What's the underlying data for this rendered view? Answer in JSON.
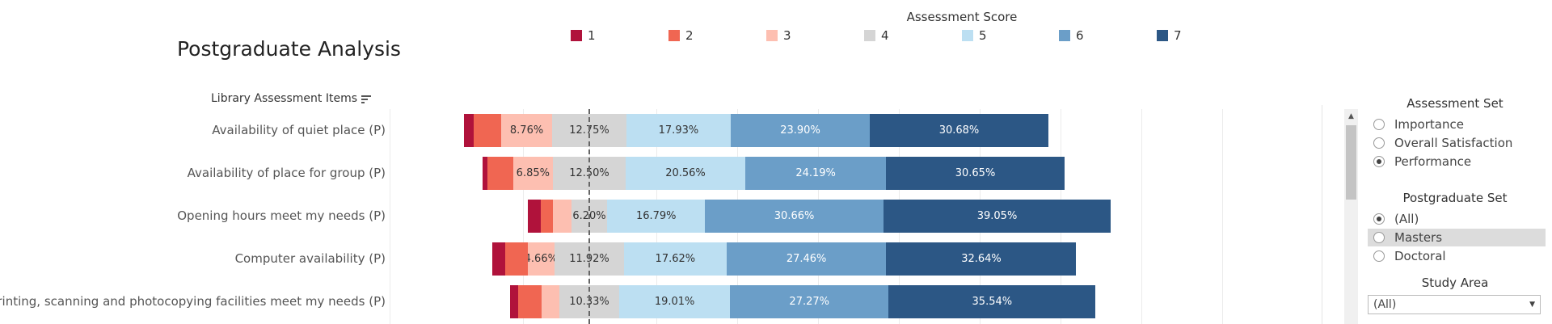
{
  "title": "Postgraduate Analysis",
  "legend": {
    "title": "Assessment Score",
    "items": [
      {
        "label": "1",
        "color": "#b0123b"
      },
      {
        "label": "2",
        "color": "#f06652"
      },
      {
        "label": "3",
        "color": "#fdbfb1"
      },
      {
        "label": "4",
        "color": "#d5d5d5"
      },
      {
        "label": "5",
        "color": "#bcdff2"
      },
      {
        "label": "6",
        "color": "#6b9ec8"
      },
      {
        "label": "7",
        "color": "#2c5785"
      }
    ]
  },
  "row_header": {
    "label": "Library Assessment Items",
    "icon": "sort-descending-icon"
  },
  "chart_data": {
    "type": "bar",
    "orientation": "horizontal",
    "stacked": "diverging",
    "series_names": [
      "1",
      "2",
      "3",
      "4",
      "5",
      "6",
      "7"
    ],
    "categories": [
      "Availability of quiet place (P)",
      "Availability of place for group (P)",
      "Opening hours meet my needs (P)",
      "Computer availability (P)",
      "Printing, scanning and photocopying facilities meet my needs (P)"
    ],
    "rows": [
      {
        "values": [
          1.7,
          4.7,
          8.76,
          12.75,
          17.93,
          23.9,
          30.68
        ],
        "labels": [
          "",
          "",
          "8.76%",
          "12.75%",
          "17.93%",
          "23.90%",
          "30.68%"
        ]
      },
      {
        "values": [
          0.9,
          4.4,
          6.85,
          12.5,
          20.56,
          24.19,
          30.65
        ],
        "labels": [
          "",
          "",
          "6.85%",
          "12.50%",
          "20.56%",
          "24.19%",
          "30.65%"
        ]
      },
      {
        "values": [
          2.1,
          2.1,
          3.2,
          6.2,
          16.79,
          30.66,
          39.05
        ],
        "labels": [
          "",
          "",
          "",
          "6.20%",
          "16.79%",
          "30.66%",
          "39.05%"
        ]
      },
      {
        "values": [
          2.2,
          3.8,
          4.66,
          11.92,
          17.62,
          27.46,
          32.64
        ],
        "labels": [
          "",
          "",
          "4.66%",
          "11.92%",
          "17.62%",
          "27.46%",
          "32.64%"
        ]
      },
      {
        "values": [
          1.4,
          4.0,
          3.0,
          10.33,
          19.01,
          27.27,
          35.54
        ],
        "labels": [
          "",
          "",
          "",
          "10.33%",
          "19.01%",
          "27.27%",
          "35.54%"
        ]
      }
    ]
  },
  "filters": {
    "assessment_set": {
      "title": "Assessment Set",
      "options": [
        {
          "label": "Importance",
          "checked": false
        },
        {
          "label": "Overall Satisfaction",
          "checked": false
        },
        {
          "label": "Performance",
          "checked": true
        }
      ]
    },
    "postgraduate_set": {
      "title": "Postgraduate Set",
      "options": [
        {
          "label": "(All)",
          "checked": true
        },
        {
          "label": "Masters",
          "checked": false,
          "highlighted": true
        },
        {
          "label": "Doctoral",
          "checked": false
        }
      ]
    },
    "study_area": {
      "title": "Study Area",
      "value": "(All)"
    }
  },
  "scrollbar": {
    "up_arrow": "▲",
    "down_arrow": "▼"
  }
}
